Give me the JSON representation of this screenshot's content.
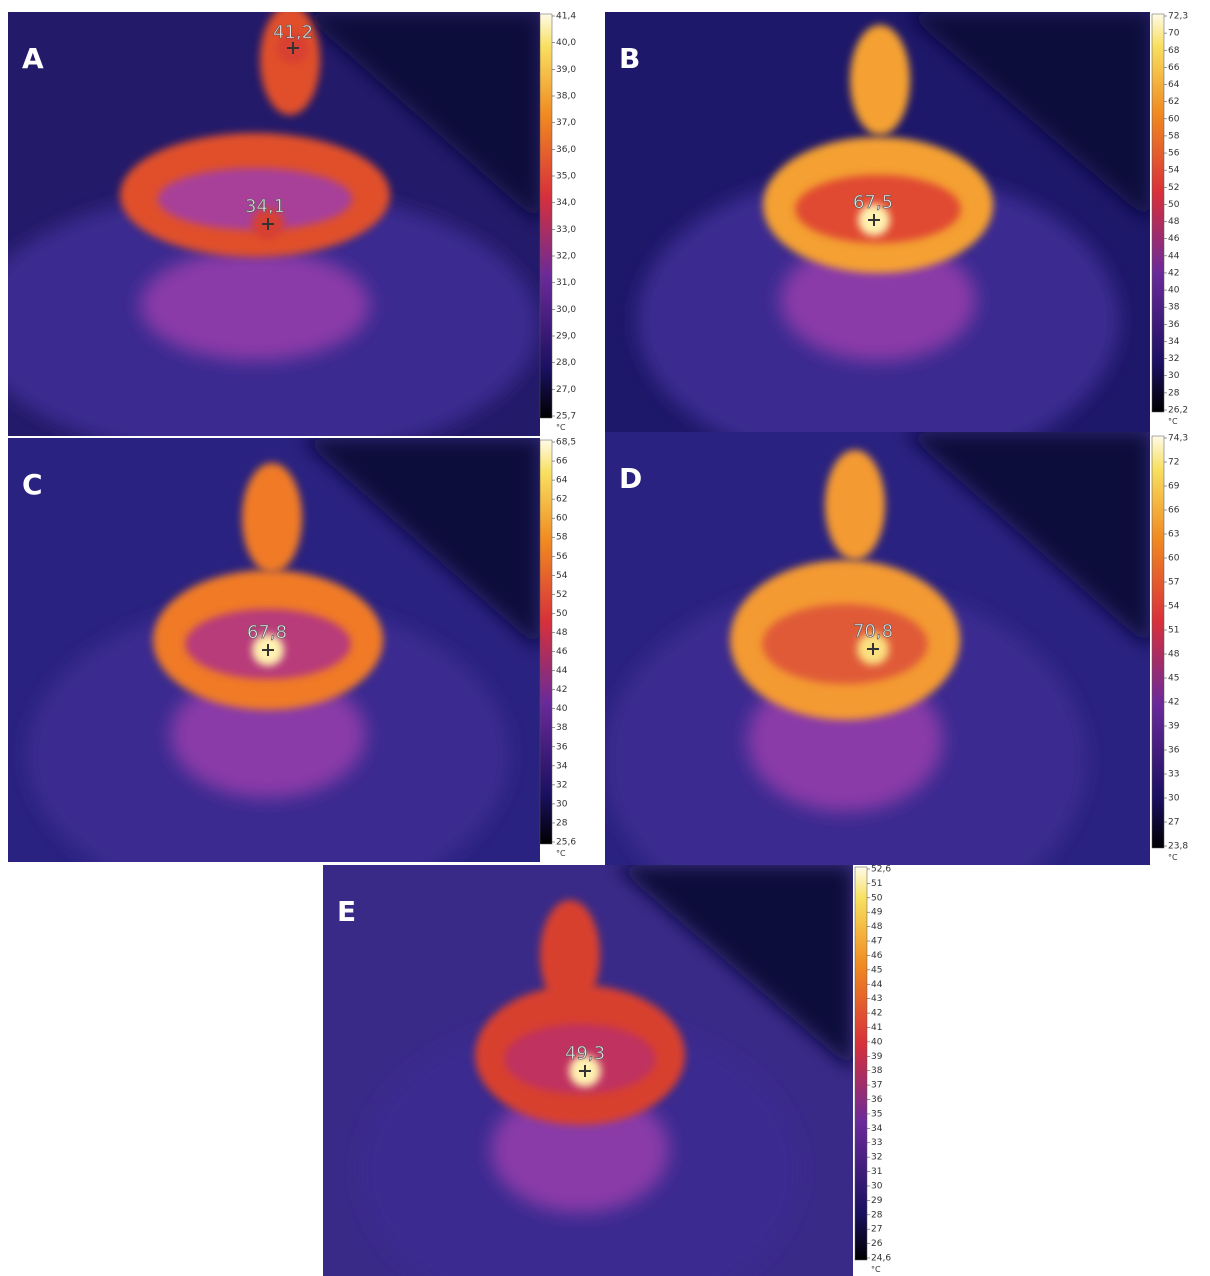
{
  "panels": [
    {
      "letter": "A",
      "unit": "°C",
      "spots": [
        "41,2",
        "34,1"
      ],
      "scale_labels": [
        "41,4",
        "40,0",
        "39,0",
        "38,0",
        "37,0",
        "36,0",
        "35,0",
        "34,0",
        "33,0",
        "32,0",
        "31,0",
        "30,0",
        "29,0",
        "28,0",
        "27,0",
        "25,7"
      ]
    },
    {
      "letter": "B",
      "unit": "°C",
      "spots": [
        "67,5"
      ],
      "scale_labels": [
        "72,3",
        "70",
        "68",
        "66",
        "64",
        "62",
        "60",
        "58",
        "56",
        "54",
        "52",
        "50",
        "48",
        "46",
        "44",
        "42",
        "40",
        "38",
        "36",
        "34",
        "32",
        "30",
        "28",
        "26,2"
      ]
    },
    {
      "letter": "C",
      "unit": "°C",
      "spots": [
        "67,8"
      ],
      "scale_labels": [
        "68,5",
        "66",
        "64",
        "62",
        "60",
        "58",
        "56",
        "54",
        "52",
        "50",
        "48",
        "46",
        "44",
        "42",
        "40",
        "38",
        "36",
        "34",
        "32",
        "30",
        "28",
        "25,6"
      ]
    },
    {
      "letter": "D",
      "unit": "°C",
      "spots": [
        "70,8"
      ],
      "scale_labels": [
        "74,3",
        "72",
        "69",
        "66",
        "63",
        "60",
        "57",
        "54",
        "51",
        "48",
        "45",
        "42",
        "39",
        "36",
        "33",
        "30",
        "27",
        "23,8"
      ]
    },
    {
      "letter": "E",
      "unit": "°C",
      "spots": [
        "49,3"
      ],
      "scale_labels": [
        "52,6",
        "51",
        "50",
        "49",
        "48",
        "47",
        "46",
        "45",
        "44",
        "43",
        "42",
        "41",
        "40",
        "39",
        "38",
        "37",
        "36",
        "35",
        "34",
        "33",
        "32",
        "31",
        "30",
        "29",
        "28",
        "27",
        "26",
        "24,6"
      ]
    }
  ]
}
